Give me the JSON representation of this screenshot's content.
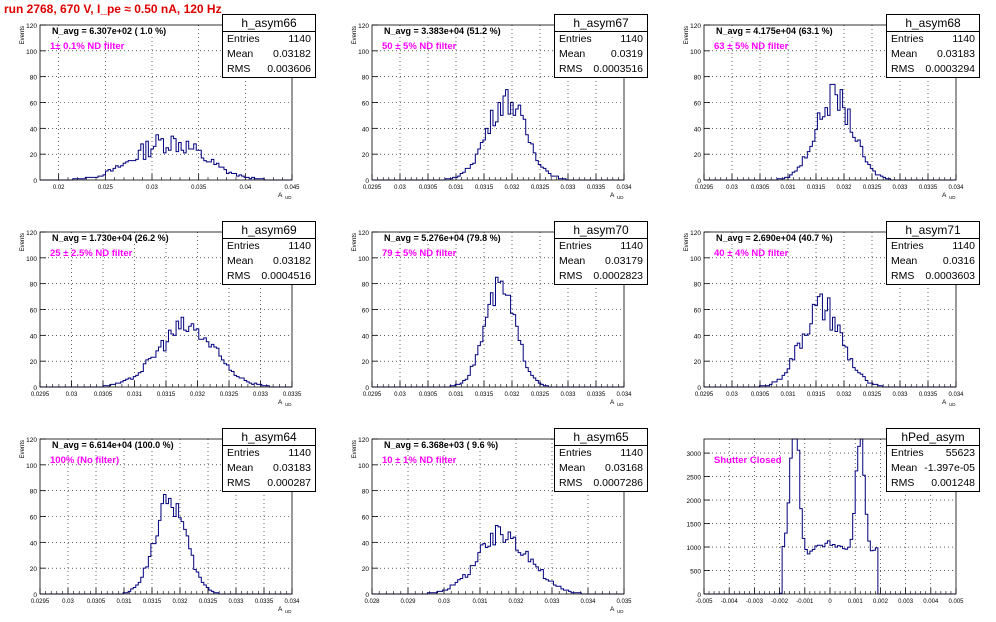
{
  "page_title": "run 2768,   670 V, I_pe ≈ 0.50 nA, 120 Hz",
  "colors": {
    "line": "#00007f",
    "title": "#e00000",
    "annotation": "#ff00ff"
  },
  "chart_data": [
    {
      "type": "histogram",
      "name": "h_asym66",
      "stats": {
        "entries_label": "Entries",
        "entries": "1140",
        "mean_label": "Mean",
        "mean": "0.03182",
        "rms_label": "RMS",
        "rms": "0.003606"
      },
      "n_avg": "N_avg = 6.307e+02 ( 1.0 %)",
      "filter": "1± 0.1% ND filter",
      "xlabel": "A_UD",
      "ylabel": "Events",
      "xlim": [
        0.018,
        0.045
      ],
      "ylim": [
        0,
        120
      ],
      "xticks": [
        "0.02",
        "0.025",
        "0.03",
        "0.035",
        "0.04",
        "0.045"
      ],
      "yticks": [
        "0",
        "20",
        "40",
        "60",
        "80",
        "100",
        "120"
      ],
      "peak": {
        "mean": 0.03182,
        "sigma": 0.0036,
        "height": 30,
        "noise": 0.3
      }
    },
    {
      "type": "histogram",
      "name": "h_asym67",
      "stats": {
        "entries_label": "Entries",
        "entries": "1140",
        "mean_label": "Mean",
        "mean": "0.0319",
        "rms_label": "RMS",
        "rms": "0.0003516"
      },
      "n_avg": "N_avg = 3.383e+04 (51.2 %)",
      "filter": "50 ± 5% ND filter",
      "xlabel": "A_UD",
      "ylabel": "Events",
      "xlim": [
        0.0295,
        0.034
      ],
      "ylim": [
        0,
        120
      ],
      "xticks": [
        "0.0295",
        "0.03",
        "0.0305",
        "0.031",
        "0.0315",
        "0.032",
        "0.0325",
        "0.033",
        "0.0335",
        "0.034"
      ],
      "yticks": [
        "0",
        "20",
        "40",
        "60",
        "80",
        "100",
        "120"
      ],
      "peak": {
        "mean": 0.0319,
        "sigma": 0.00035,
        "height": 62,
        "noise": 0.18
      }
    },
    {
      "type": "histogram",
      "name": "h_asym68",
      "stats": {
        "entries_label": "Entries",
        "entries": "1140",
        "mean_label": "Mean",
        "mean": "0.03183",
        "rms_label": "RMS",
        "rms": "0.0003294"
      },
      "n_avg": "N_avg = 4.175e+04 (63.1 %)",
      "filter": "63 ± 5% ND filter",
      "xlabel": "A_UD",
      "ylabel": "Events",
      "xlim": [
        0.0295,
        0.034
      ],
      "ylim": [
        0,
        120
      ],
      "xticks": [
        "0.0295",
        "0.03",
        "0.0305",
        "0.031",
        "0.0315",
        "0.032",
        "0.0325",
        "0.033",
        "0.0335",
        "0.034"
      ],
      "yticks": [
        "0",
        "20",
        "40",
        "60",
        "80",
        "100",
        "120"
      ],
      "peak": {
        "mean": 0.03183,
        "sigma": 0.00033,
        "height": 64,
        "noise": 0.18
      }
    },
    {
      "type": "histogram",
      "name": "h_asym69",
      "stats": {
        "entries_label": "Entries",
        "entries": "1140",
        "mean_label": "Mean",
        "mean": "0.03182",
        "rms_label": "RMS",
        "rms": "0.0004516"
      },
      "n_avg": "N_avg = 1.730e+04 (26.2 %)",
      "filter": "25 ± 2.5% ND filter",
      "xlabel": "A_UD",
      "ylabel": "Events",
      "xlim": [
        0.0295,
        0.0335
      ],
      "ylim": [
        0,
        120
      ],
      "xticks": [
        "0.0295",
        "0.03",
        "0.0305",
        "0.031",
        "0.0315",
        "0.032",
        "0.0325",
        "0.033",
        "0.0335"
      ],
      "yticks": [
        "0",
        "20",
        "40",
        "60",
        "80",
        "100",
        "120"
      ],
      "peak": {
        "mean": 0.03182,
        "sigma": 0.00045,
        "height": 46,
        "noise": 0.2
      }
    },
    {
      "type": "histogram",
      "name": "h_asym70",
      "stats": {
        "entries_label": "Entries",
        "entries": "1140",
        "mean_label": "Mean",
        "mean": "0.03179",
        "rms_label": "RMS",
        "rms": "0.0002823"
      },
      "n_avg": "N_avg = 5.276e+04 (79.8 %)",
      "filter": "79 ± 5% ND filter",
      "xlabel": "A_UD",
      "ylabel": "Events",
      "xlim": [
        0.0295,
        0.034
      ],
      "ylim": [
        0,
        120
      ],
      "xticks": [
        "0.0295",
        "0.03",
        "0.0305",
        "0.031",
        "0.0315",
        "0.032",
        "0.0325",
        "0.033",
        "0.0335",
        "0.034"
      ],
      "yticks": [
        "0",
        "20",
        "40",
        "60",
        "80",
        "100",
        "120"
      ],
      "peak": {
        "mean": 0.03179,
        "sigma": 0.00028,
        "height": 76,
        "noise": 0.15
      }
    },
    {
      "type": "histogram",
      "name": "h_asym71",
      "stats": {
        "entries_label": "Entries",
        "entries": "1140",
        "mean_label": "Mean",
        "mean": "0.0316",
        "rms_label": "RMS",
        "rms": "0.0003603"
      },
      "n_avg": "N_avg = 2.690e+04 (40.7 %)",
      "filter": "40 ± 4% ND filter",
      "xlabel": "A_UD",
      "ylabel": "Events",
      "xlim": [
        0.0295,
        0.034
      ],
      "ylim": [
        0,
        120
      ],
      "xticks": [
        "0.0295",
        "0.03",
        "0.0305",
        "0.031",
        "0.0315",
        "0.032",
        "0.0325",
        "0.033",
        "0.0335",
        "0.034"
      ],
      "yticks": [
        "0",
        "20",
        "40",
        "60",
        "80",
        "100",
        "120"
      ],
      "peak": {
        "mean": 0.0316,
        "sigma": 0.00036,
        "height": 60,
        "noise": 0.22
      }
    },
    {
      "type": "histogram",
      "name": "h_asym64",
      "stats": {
        "entries_label": "Entries",
        "entries": "1140",
        "mean_label": "Mean",
        "mean": "0.03183",
        "rms_label": "RMS",
        "rms": "0.000287"
      },
      "n_avg": "N_avg = 6.614e+04 (100.0 %)",
      "filter": "100% (No filter)",
      "xlabel": "A_UD",
      "ylabel": "Events",
      "xlim": [
        0.0295,
        0.034
      ],
      "ylim": [
        0,
        120
      ],
      "xticks": [
        "0.0295",
        "0.03",
        "0.0305",
        "0.031",
        "0.0315",
        "0.032",
        "0.0325",
        "0.033",
        "0.0335",
        "0.034"
      ],
      "yticks": [
        "0",
        "20",
        "40",
        "60",
        "80",
        "100",
        "120"
      ],
      "peak": {
        "mean": 0.03183,
        "sigma": 0.00028,
        "height": 72,
        "noise": 0.15
      }
    },
    {
      "type": "histogram",
      "name": "h_asym65",
      "stats": {
        "entries_label": "Entries",
        "entries": "1140",
        "mean_label": "Mean",
        "mean": "0.03168",
        "rms_label": "RMS",
        "rms": "0.0007286"
      },
      "n_avg": "N_avg = 6.368e+03 ( 9.6 %)",
      "filter": "10 ± 1% ND filter",
      "xlabel": "A_UD",
      "ylabel": "Events",
      "xlim": [
        0.028,
        0.035
      ],
      "ylim": [
        0,
        120
      ],
      "xticks": [
        "0.028",
        "0.029",
        "0.03",
        "0.031",
        "0.032",
        "0.033",
        "0.034",
        "0.035"
      ],
      "yticks": [
        "0",
        "20",
        "40",
        "60",
        "80",
        "100",
        "120"
      ],
      "peak": {
        "mean": 0.03168,
        "sigma": 0.00072,
        "height": 46,
        "noise": 0.22
      }
    },
    {
      "type": "histogram",
      "name": "hPed_asym",
      "stats": {
        "entries_label": "Entries",
        "entries": "55623",
        "mean_label": "Mean",
        "mean": "-1.397e-05",
        "rms_label": "RMS",
        "rms": "0.001248"
      },
      "n_avg": "",
      "filter": "Shutter Closed",
      "xlabel": "",
      "ylabel": "",
      "xlim": [
        -0.005,
        0.005
      ],
      "ylim": [
        0,
        3300
      ],
      "xticks": [
        "-0.005",
        "-0.004",
        "-0.003",
        "-0.002",
        "-0.001",
        "0",
        "0.001",
        "0.002",
        "0.003",
        "0.004",
        "0.005"
      ],
      "yticks": [
        "0",
        "500",
        "1000",
        "1500",
        "2000",
        "2500",
        "3000"
      ],
      "ped": true
    }
  ]
}
